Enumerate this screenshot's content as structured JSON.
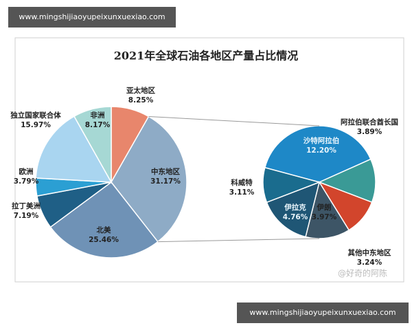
{
  "header": {
    "url": "www.mingshijiaoyupeixunxuexiao.com"
  },
  "footer": {
    "url": "www.mingshijiaoyupeixunxuexiao.com"
  },
  "watermark": "@好奇的阿陈",
  "chart_data": [
    {
      "type": "pie",
      "title": "2021年全球石油各地区产量占比情况",
      "categories": [
        "亚太地区",
        "中东地区",
        "北美",
        "拉丁美洲",
        "欧洲",
        "独立国家联合体",
        "非洲"
      ],
      "values": [
        8.25,
        31.17,
        25.46,
        7.19,
        3.79,
        15.97,
        8.17
      ],
      "value_labels": [
        "8.25%",
        "31.17%",
        "25.46%",
        "7.19%",
        "3.79%",
        "15.97%",
        "8.17%"
      ],
      "colors": [
        "#e8866c",
        "#8eabc6",
        "#6f92b6",
        "#1f5f86",
        "#2b9fd3",
        "#a9d5f0",
        "#a6d8d4"
      ]
    },
    {
      "type": "pie",
      "categories": [
        "沙特阿拉伯",
        "阿拉伯联合酋长国",
        "其他中东地区",
        "伊朗",
        "伊拉克",
        "科威特"
      ],
      "values": [
        12.2,
        3.89,
        3.24,
        3.97,
        4.76,
        3.11
      ],
      "value_labels": [
        "12.20%",
        "3.89%",
        "3.24%",
        "3.97%",
        "4.76%",
        "3.11%"
      ],
      "colors": [
        "#1e88c7",
        "#3a9a96",
        "#d2452c",
        "#3d5566",
        "#1f5675",
        "#1a6c8e"
      ]
    }
  ]
}
